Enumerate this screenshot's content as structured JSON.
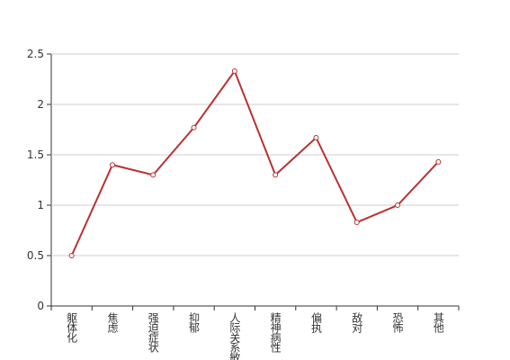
{
  "chart_data": {
    "type": "line",
    "categories": [
      "躯体化",
      "焦虑",
      "强迫症状",
      "抑郁",
      "人际关系敏感",
      "精神病性",
      "偏执",
      "敌对",
      "恐怖",
      "其他"
    ],
    "values": [
      0.5,
      1.4,
      1.3,
      1.77,
      2.33,
      1.3,
      1.67,
      0.83,
      1.0,
      1.43
    ],
    "color": "#b83232",
    "ylim": [
      0,
      2.5
    ],
    "yticks": [
      0,
      0.5,
      1,
      1.5,
      2,
      2.5
    ],
    "grid": true
  }
}
